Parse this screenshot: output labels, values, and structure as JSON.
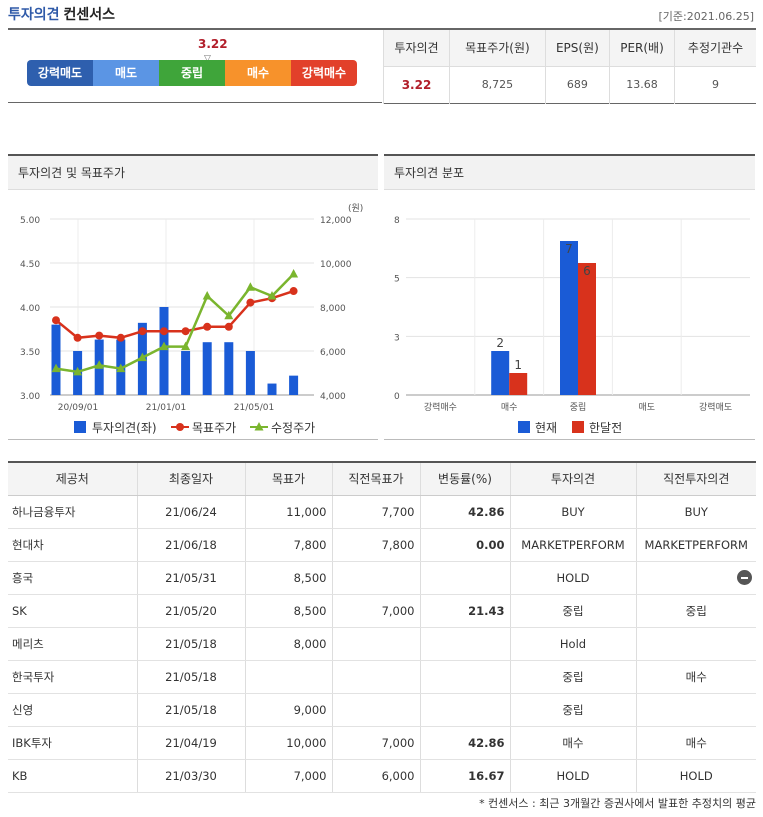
{
  "header": {
    "title_main": "투자의견",
    "title_sub": "컨센서스",
    "basis_date": "[기준:2021.06.25]"
  },
  "opinion_scale": {
    "score": "3.22",
    "score_value": 3.22,
    "segments": [
      {
        "label": "강력매도",
        "color": "#2e5fae"
      },
      {
        "label": "매도",
        "color": "#5b95e4"
      },
      {
        "label": "중립",
        "color": "#3fa53a"
      },
      {
        "label": "매수",
        "color": "#f7922b"
      },
      {
        "label": "강력매수",
        "color": "#e2402a"
      }
    ]
  },
  "consensus_table": {
    "headers": [
      "투자의견",
      "목표주가(원)",
      "EPS(원)",
      "PER(배)",
      "추정기관수"
    ],
    "values": [
      "3.22",
      "8,725",
      "689",
      "13.68",
      "9"
    ]
  },
  "panels": {
    "left_title": "투자의견 및 목표주가",
    "right_title": "투자의견 분포"
  },
  "chart_data": [
    {
      "type": "bar",
      "title": "투자의견 및 목표주가",
      "unit_label": "(원)",
      "x_ticks": [
        "20/09/01",
        "21/01/01",
        "21/05/01"
      ],
      "y_left": {
        "ticks": [
          "5.00",
          "4.50",
          "4.00",
          "3.50",
          "3.00"
        ],
        "range": [
          3.0,
          5.0
        ]
      },
      "y_right": {
        "ticks": [
          "12,000",
          "10,000",
          "8,000",
          "6,000",
          "4,000"
        ],
        "range": [
          4000,
          12000
        ]
      },
      "series": [
        {
          "name": "투자의견(좌)",
          "type": "bar",
          "axis": "left",
          "color": "#1a5bd6",
          "values": [
            3.8,
            3.5,
            3.63,
            3.63,
            3.82,
            4.0,
            3.5,
            3.6,
            3.6,
            3.5,
            3.13,
            3.22
          ]
        },
        {
          "name": "목표주가",
          "type": "line",
          "axis": "right",
          "color": "#d8321c",
          "values": [
            7400,
            6600,
            6700,
            6600,
            6900,
            6900,
            6900,
            7100,
            7100,
            8200,
            8400,
            8725
          ]
        },
        {
          "name": "수정주가",
          "type": "line",
          "axis": "right",
          "color": "#7ab52e",
          "values": [
            5200,
            5050,
            5350,
            5200,
            5700,
            6200,
            6200,
            8500,
            7600,
            8900,
            8500,
            9500
          ]
        }
      ]
    },
    {
      "type": "bar",
      "title": "투자의견 분포",
      "categories": [
        "강력매수",
        "매수",
        "중립",
        "매도",
        "강력매도"
      ],
      "y_ticks": [
        "8",
        "5",
        "3",
        "0"
      ],
      "ylim": [
        0,
        8
      ],
      "series": [
        {
          "name": "현재",
          "color": "#1a5bd6",
          "values": [
            0,
            2,
            7,
            0,
            0
          ],
          "labels": [
            "",
            "2",
            "7",
            "",
            ""
          ]
        },
        {
          "name": "한달전",
          "color": "#d8321c",
          "values": [
            0,
            1,
            6,
            0,
            0
          ],
          "labels": [
            "",
            "1",
            "6",
            "",
            ""
          ]
        }
      ]
    }
  ],
  "report_table": {
    "headers": [
      "제공처",
      "최종일자",
      "목표가",
      "직전목표가",
      "변동률(%)",
      "투자의견",
      "직전투자의견"
    ],
    "rows": [
      [
        "하나금융투자",
        "21/06/24",
        "11,000",
        "7,700",
        "42.86",
        "BUY",
        "BUY"
      ],
      [
        "현대차",
        "21/06/18",
        "7,800",
        "7,800",
        "0.00",
        "MARKETPERFORM",
        "MARKETPERFORM"
      ],
      [
        "흥국",
        "21/05/31",
        "8,500",
        "",
        "",
        "HOLD",
        ""
      ],
      [
        "SK",
        "21/05/20",
        "8,500",
        "7,000",
        "21.43",
        "중립",
        "중립"
      ],
      [
        "메리츠",
        "21/05/18",
        "8,000",
        "",
        "",
        "Hold",
        ""
      ],
      [
        "한국투자",
        "21/05/18",
        "",
        "",
        "",
        "중립",
        "매수"
      ],
      [
        "신영",
        "21/05/18",
        "9,000",
        "",
        "",
        "중립",
        ""
      ],
      [
        "IBK투자",
        "21/04/19",
        "10,000",
        "7,000",
        "42.86",
        "매수",
        "매수"
      ],
      [
        "KB",
        "21/03/30",
        "7,000",
        "6,000",
        "16.67",
        "HOLD",
        "HOLD"
      ]
    ]
  },
  "footnote": "* 컨센서스 : 최근 3개월간 증권사에서 발표한 추정치의 평균"
}
